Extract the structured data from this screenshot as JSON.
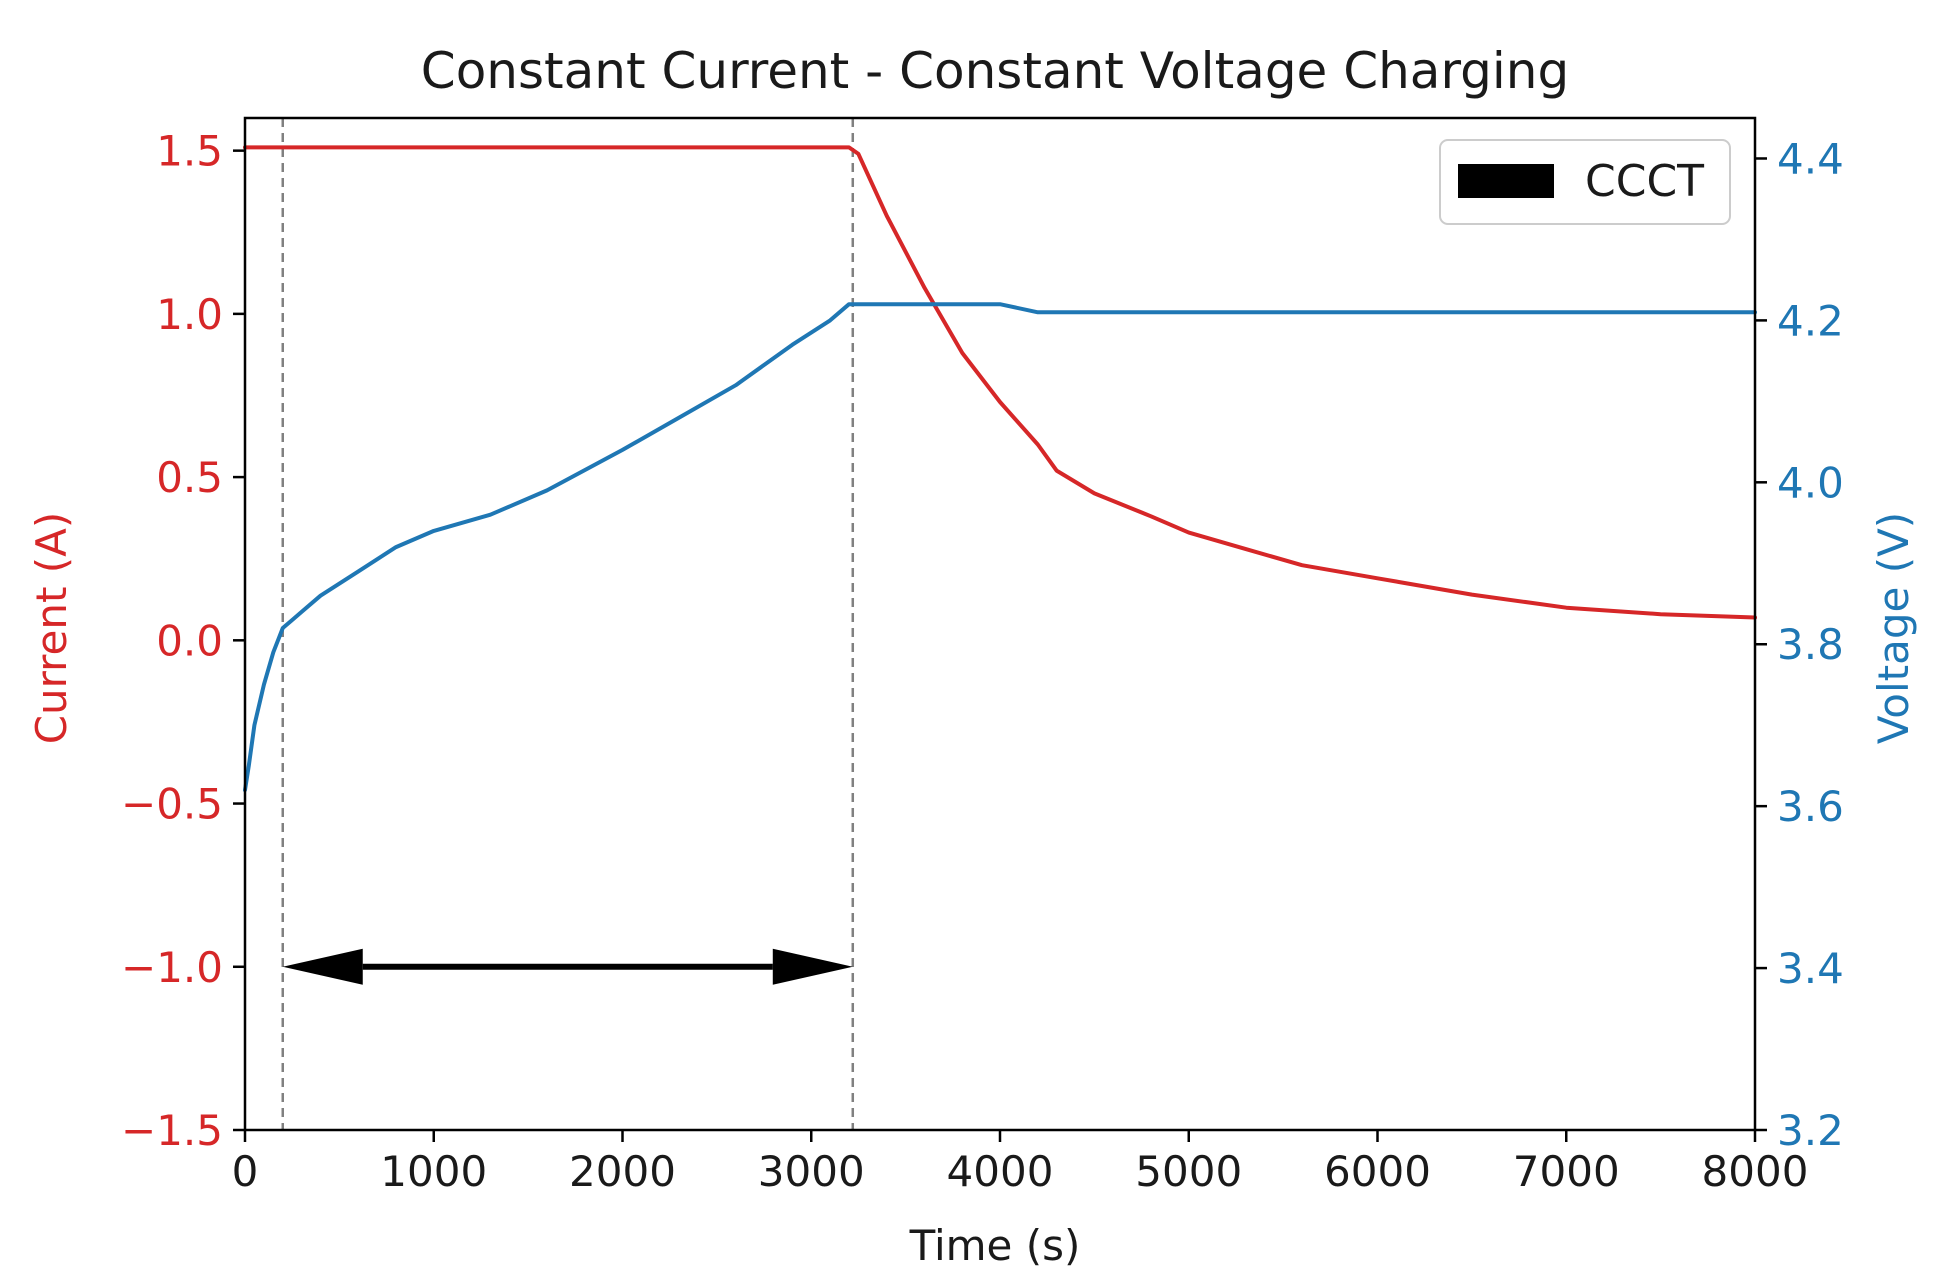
{
  "chart_data": {
    "type": "line",
    "title": "Constant Current - Constant Voltage Charging",
    "xlabel": "Time (s)",
    "xlim": [
      0,
      8000
    ],
    "x_ticks": [
      0,
      1000,
      2000,
      3000,
      4000,
      5000,
      6000,
      7000,
      8000
    ],
    "y_left": {
      "label": "Current (A)",
      "color": "#d62728",
      "ylim": [
        -1.5,
        1.6
      ],
      "ticks": [
        -1.5,
        -1.0,
        -0.5,
        0.0,
        0.5,
        1.0,
        1.5
      ],
      "tick_labels": [
        "−1.5",
        "−1.0",
        "−0.5",
        "0.0",
        "0.5",
        "1.0",
        "1.5"
      ]
    },
    "y_right": {
      "label": "Voltage (V)",
      "color": "#1f77b4",
      "ylim": [
        3.2,
        4.45
      ],
      "ticks": [
        3.2,
        3.4,
        3.6,
        3.8,
        4.0,
        4.2,
        4.4
      ],
      "tick_labels": [
        "3.2",
        "3.4",
        "3.6",
        "3.8",
        "4.0",
        "4.2",
        "4.4"
      ]
    },
    "series": [
      {
        "axis": "left",
        "color": "#d62728",
        "x": [
          0,
          500,
          1000,
          1500,
          2000,
          2500,
          3000,
          3200,
          3250,
          3400,
          3600,
          3800,
          4000,
          4200,
          4300,
          4500,
          4800,
          5000,
          5300,
          5600,
          6000,
          6500,
          7000,
          7500,
          8000
        ],
        "y": [
          1.51,
          1.51,
          1.51,
          1.51,
          1.51,
          1.51,
          1.51,
          1.51,
          1.49,
          1.3,
          1.08,
          0.88,
          0.73,
          0.6,
          0.52,
          0.45,
          0.38,
          0.33,
          0.28,
          0.23,
          0.19,
          0.14,
          0.1,
          0.08,
          0.07
        ]
      },
      {
        "axis": "right",
        "color": "#1f77b4",
        "x": [
          0,
          20,
          50,
          100,
          150,
          200,
          250,
          300,
          400,
          600,
          800,
          1000,
          1300,
          1600,
          2000,
          2300,
          2600,
          2900,
          3100,
          3200,
          3250,
          3300,
          3500,
          3800,
          4000,
          4200,
          4300,
          5000,
          6000,
          7000,
          8000
        ],
        "y": [
          3.62,
          3.65,
          3.7,
          3.75,
          3.79,
          3.82,
          3.83,
          3.84,
          3.86,
          3.89,
          3.92,
          3.94,
          3.96,
          3.99,
          4.04,
          4.08,
          4.12,
          4.17,
          4.2,
          4.22,
          4.22,
          4.22,
          4.22,
          4.22,
          4.22,
          4.21,
          4.21,
          4.21,
          4.21,
          4.21,
          4.21
        ]
      }
    ],
    "legend": {
      "position": "top-right",
      "entries": [
        {
          "label": "CCCT",
          "color": "#000000"
        }
      ]
    },
    "annotations": {
      "vlines_x": [
        200,
        3220
      ],
      "arrow": {
        "x_start": 200,
        "x_end": 3220,
        "y": -1.0,
        "axis": "left"
      }
    }
  }
}
